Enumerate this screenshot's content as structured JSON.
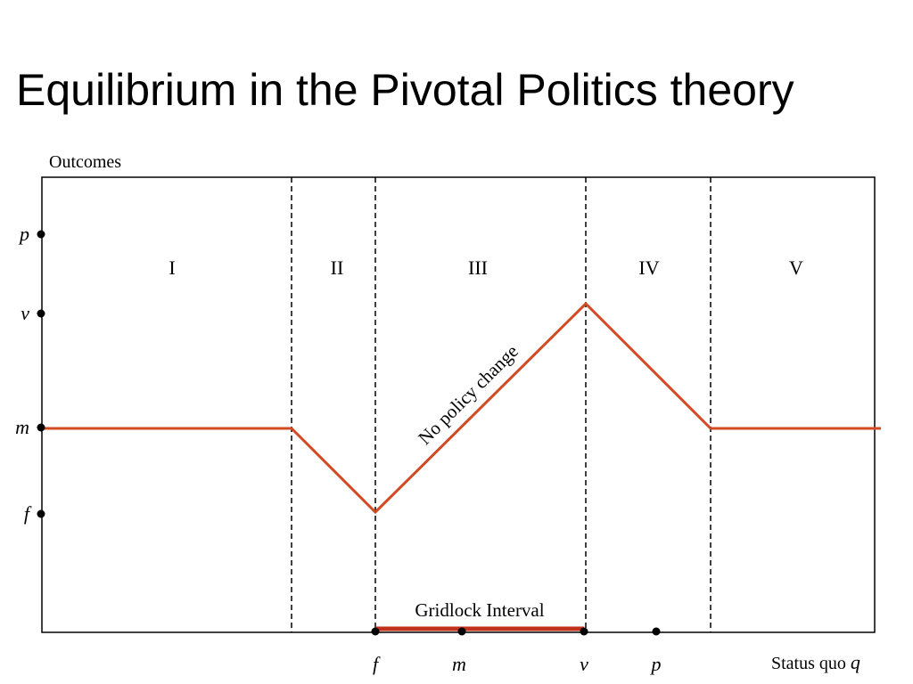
{
  "title": "Equilibrium in the Pivotal Politics theory",
  "y_axis_label": "Outcomes",
  "y_labels": [
    "p",
    "v",
    "m",
    "f"
  ],
  "regions": [
    "I",
    "II",
    "III",
    "IV",
    "V"
  ],
  "line_label": "No policy change",
  "interval_label": "Gridlock Interval",
  "x_labels": [
    "f",
    "m",
    "v",
    "p"
  ],
  "x_axis_label": {
    "text": "Status quo",
    "var": "q"
  }
}
